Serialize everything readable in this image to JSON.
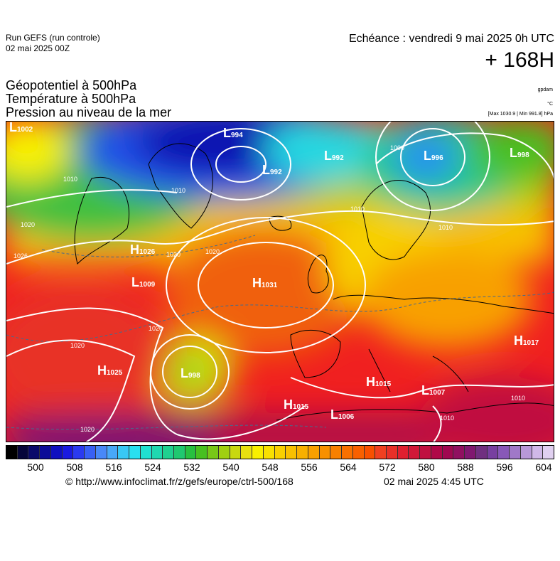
{
  "header": {
    "run_label": "Run GEFS (run controle)",
    "run_date": "02 mai 2025 00Z",
    "echeance": "Echéance : vendredi 9 mai 2025 0h UTC",
    "lead_time": "+ 168H"
  },
  "params": {
    "line1": "Géopotentiel à 500hPa",
    "line2": "Température à 500hPa",
    "line3": "Pression au niveau de la mer"
  },
  "units": {
    "gpdam": "gpdam",
    "celsius": "°C",
    "pressure_range": "[Max 1030.9 | Min 991.8] hPa"
  },
  "pressure_centers": [
    {
      "type": "L",
      "value": "1002"
    },
    {
      "type": "L",
      "value": "994"
    },
    {
      "type": "L",
      "value": "992"
    },
    {
      "type": "L",
      "value": "992"
    },
    {
      "type": "L",
      "value": "996"
    },
    {
      "type": "L",
      "value": "998"
    },
    {
      "type": "H",
      "value": "1026"
    },
    {
      "type": "L",
      "value": "1009"
    },
    {
      "type": "H",
      "value": "1031"
    },
    {
      "type": "H",
      "value": "1025"
    },
    {
      "type": "L",
      "value": "998"
    },
    {
      "type": "H",
      "value": "1015"
    },
    {
      "type": "L",
      "value": "1007"
    },
    {
      "type": "H",
      "value": "1015"
    },
    {
      "type": "L",
      "value": "1006"
    },
    {
      "type": "H",
      "value": "1017"
    }
  ],
  "isobar_labels": [
    "1020",
    "1010",
    "1020",
    "1020",
    "1010",
    "1010",
    "1000",
    "1020",
    "1020",
    "1010",
    "1010",
    "1010",
    "1020",
    "1026"
  ],
  "colorbar": {
    "tick_labels": [
      "500",
      "508",
      "516",
      "524",
      "532",
      "540",
      "548",
      "556",
      "564",
      "572",
      "580",
      "588",
      "596",
      "604"
    ],
    "colors": [
      "#000000",
      "#06063a",
      "#0a0a6a",
      "#0c0c98",
      "#1010c0",
      "#1a1ae0",
      "#2a3af0",
      "#3860f5",
      "#4888f8",
      "#48a8f8",
      "#38c8f5",
      "#28e0f0",
      "#20e0d0",
      "#20d8b0",
      "#20d090",
      "#20c870",
      "#28c040",
      "#48c020",
      "#78c818",
      "#a0d010",
      "#c8d810",
      "#e8e010",
      "#f8f000",
      "#f8e000",
      "#f8d000",
      "#f8c000",
      "#f8b000",
      "#f8a000",
      "#f89000",
      "#f88000",
      "#f87000",
      "#f86000",
      "#f85000",
      "#f04020",
      "#e83028",
      "#e02030",
      "#d01838",
      "#c01040",
      "#b00848",
      "#a00850",
      "#901060",
      "#801870",
      "#703080",
      "#7840a0",
      "#8858b8",
      "#a078c8",
      "#b898d8",
      "#d0b8e8",
      "#e0d0f0"
    ]
  },
  "footer": {
    "source": "© http://www.infoclimat.fr/z/gefs/europe/ctrl-500/168",
    "generated": "02 mai 2025  4:45 UTC"
  }
}
